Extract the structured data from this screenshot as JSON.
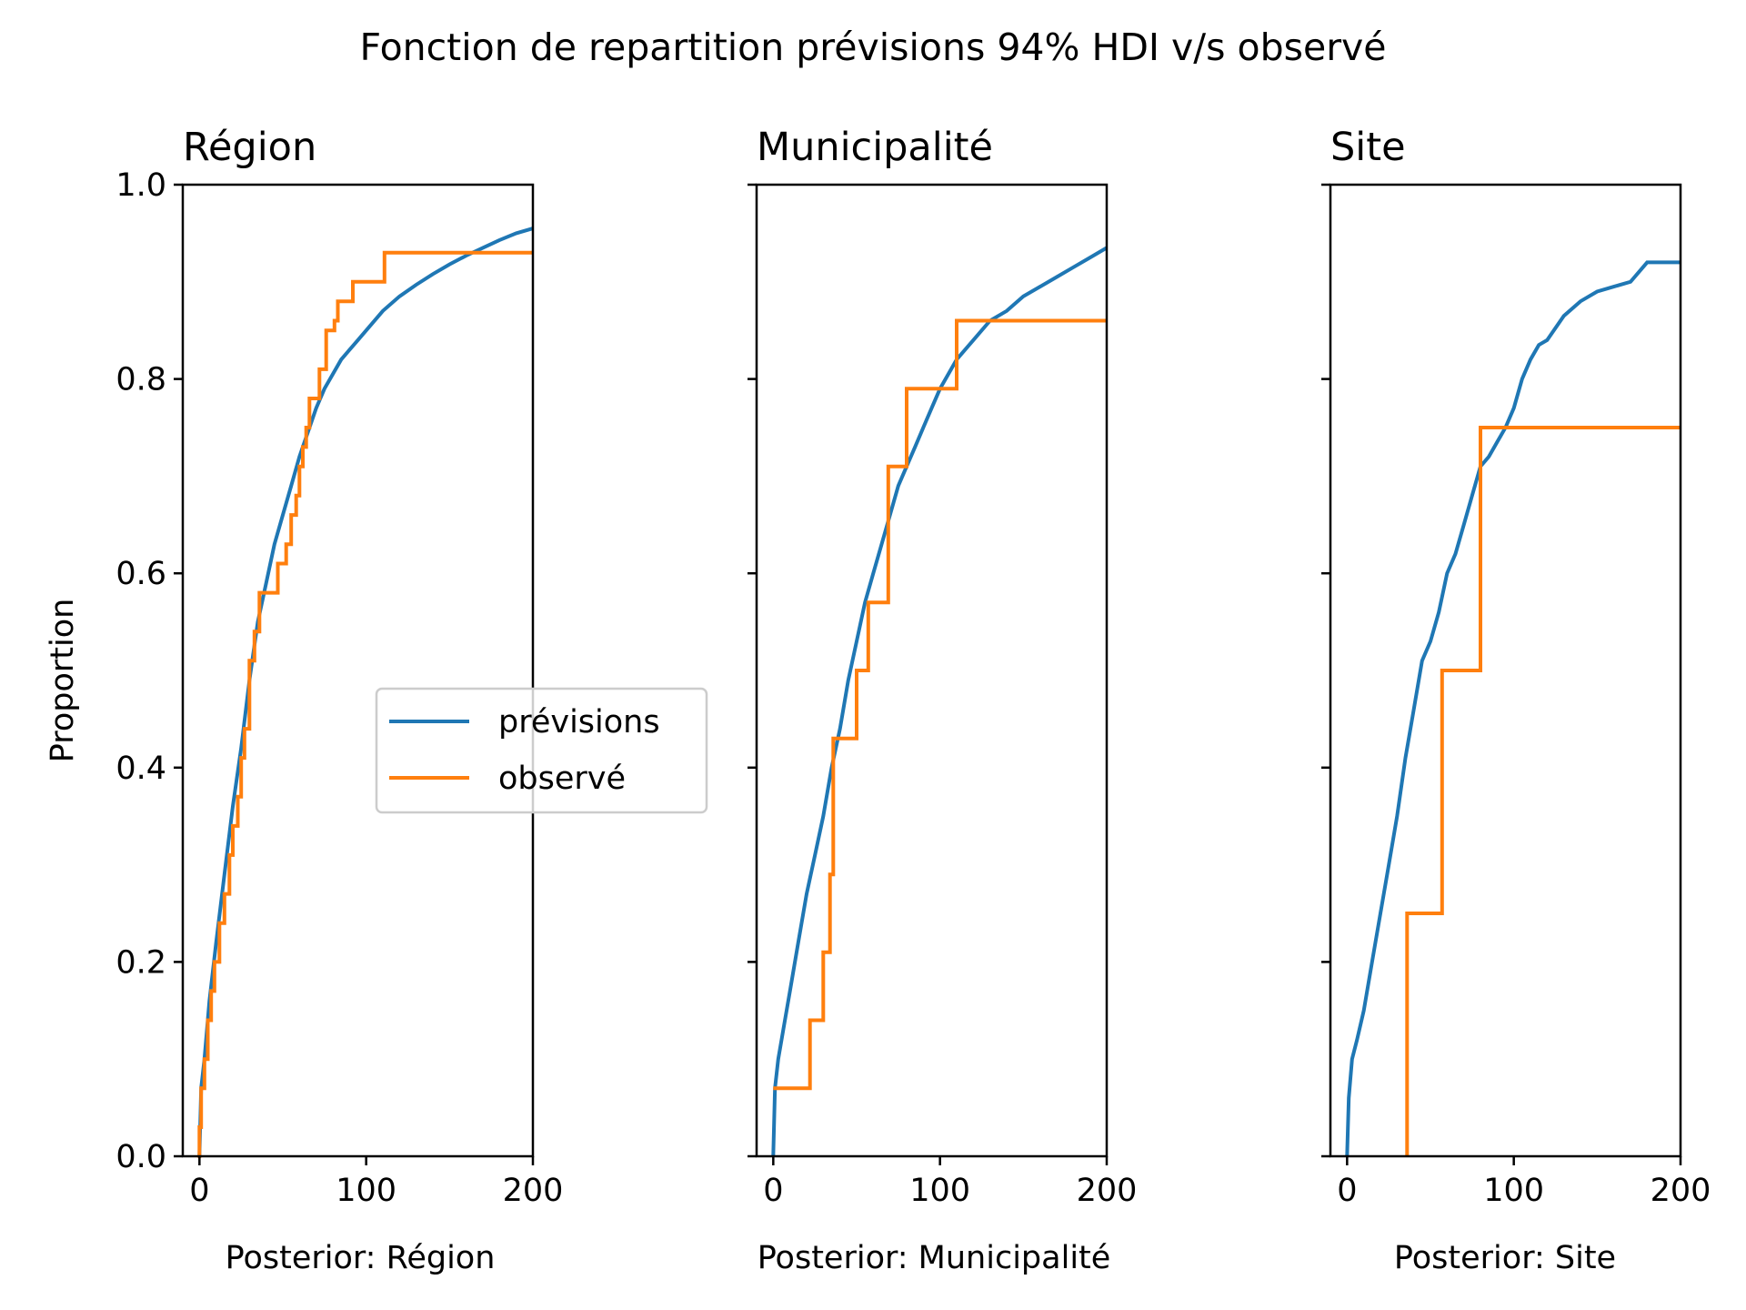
{
  "figure": {
    "title": "Fonction de repartition prévisions 94% HDI v/s observé"
  },
  "colors": {
    "previsions": "#1f77b4",
    "observe": "#ff7f0e"
  },
  "chart_data": [
    {
      "type": "line",
      "title": "Région",
      "xlabel": "Posterior: Région",
      "ylabel": "Proportion",
      "xlim": [
        -10,
        200
      ],
      "ylim": [
        0,
        1
      ],
      "xticks": [
        "0",
        "100",
        "200"
      ],
      "yticks": [
        "0.0",
        "0.2",
        "0.4",
        "0.6",
        "0.8",
        "1.0"
      ],
      "legend": {
        "position": "center-right",
        "entries": [
          "prévisions",
          "observé"
        ]
      },
      "series": [
        {
          "name": "prévisions",
          "step": false,
          "x": [
            0,
            1,
            3,
            6,
            10,
            15,
            20,
            25,
            30,
            35,
            40,
            45,
            50,
            55,
            60,
            65,
            70,
            75,
            80,
            85,
            90,
            95,
            100,
            110,
            120,
            130,
            140,
            150,
            160,
            170,
            180,
            190,
            200
          ],
          "y": [
            0,
            0.07,
            0.1,
            0.16,
            0.22,
            0.29,
            0.36,
            0.42,
            0.49,
            0.55,
            0.59,
            0.63,
            0.66,
            0.69,
            0.72,
            0.745,
            0.77,
            0.79,
            0.805,
            0.82,
            0.83,
            0.84,
            0.85,
            0.87,
            0.885,
            0.897,
            0.908,
            0.918,
            0.927,
            0.935,
            0.943,
            0.95,
            0.955
          ]
        },
        {
          "name": "observé",
          "step": true,
          "x": [
            -1,
            0,
            1,
            3,
            5,
            7,
            9,
            12,
            15,
            18,
            20,
            23,
            25,
            27,
            30,
            33,
            36,
            40,
            47,
            52,
            55,
            58,
            60,
            62,
            64,
            66,
            68,
            72,
            76,
            78,
            81,
            83,
            87,
            92,
            98,
            111,
            200
          ],
          "y": [
            0,
            0.03,
            0.07,
            0.1,
            0.14,
            0.17,
            0.2,
            0.24,
            0.27,
            0.31,
            0.34,
            0.37,
            0.41,
            0.44,
            0.51,
            0.54,
            0.58,
            0.58,
            0.61,
            0.63,
            0.66,
            0.68,
            0.71,
            0.73,
            0.75,
            0.78,
            0.78,
            0.81,
            0.85,
            0.85,
            0.86,
            0.88,
            0.88,
            0.9,
            0.9,
            0.93,
            0.93
          ]
        }
      ]
    },
    {
      "type": "line",
      "title": "Municipalité",
      "xlabel": "Posterior: Municipalité",
      "ylabel": "",
      "xlim": [
        -10,
        200
      ],
      "ylim": [
        0,
        1
      ],
      "xticks": [
        "0",
        "100",
        "200"
      ],
      "yticks": [],
      "series": [
        {
          "name": "prévisions",
          "step": false,
          "x": [
            0,
            1,
            3,
            6,
            10,
            15,
            20,
            25,
            30,
            35,
            40,
            45,
            50,
            55,
            60,
            65,
            70,
            75,
            80,
            85,
            90,
            95,
            100,
            110,
            120,
            130,
            140,
            150,
            160,
            170,
            180,
            190,
            200
          ],
          "y": [
            0,
            0.07,
            0.1,
            0.13,
            0.17,
            0.22,
            0.27,
            0.31,
            0.35,
            0.4,
            0.44,
            0.49,
            0.53,
            0.57,
            0.6,
            0.63,
            0.66,
            0.69,
            0.71,
            0.73,
            0.75,
            0.77,
            0.79,
            0.82,
            0.84,
            0.86,
            0.87,
            0.885,
            0.895,
            0.905,
            0.915,
            0.925,
            0.935
          ]
        },
        {
          "name": "observé",
          "step": true,
          "x": [
            0,
            22,
            30,
            34,
            36,
            50,
            57,
            69,
            80,
            110,
            200
          ],
          "y": [
            0.07,
            0.14,
            0.21,
            0.29,
            0.43,
            0.5,
            0.57,
            0.71,
            0.79,
            0.86,
            0.86
          ]
        }
      ]
    },
    {
      "type": "line",
      "title": "Site",
      "xlabel": "Posterior: Site",
      "ylabel": "",
      "xlim": [
        -10,
        200
      ],
      "ylim": [
        0,
        1
      ],
      "xticks": [
        "0",
        "100",
        "200"
      ],
      "yticks": [],
      "series": [
        {
          "name": "prévisions",
          "step": false,
          "x": [
            0,
            1,
            3,
            6,
            10,
            15,
            20,
            25,
            30,
            35,
            40,
            45,
            50,
            55,
            60,
            65,
            70,
            75,
            80,
            85,
            90,
            95,
            100,
            105,
            110,
            115,
            120,
            130,
            140,
            150,
            160,
            170,
            180,
            190,
            200
          ],
          "y": [
            0,
            0.06,
            0.1,
            0.12,
            0.15,
            0.2,
            0.25,
            0.3,
            0.35,
            0.41,
            0.46,
            0.51,
            0.53,
            0.56,
            0.6,
            0.62,
            0.65,
            0.68,
            0.71,
            0.72,
            0.735,
            0.75,
            0.77,
            0.8,
            0.82,
            0.835,
            0.84,
            0.865,
            0.88,
            0.89,
            0.895,
            0.9,
            0.92,
            0.92,
            0.92
          ]
        },
        {
          "name": "observé",
          "step": true,
          "x": [
            36,
            36,
            57,
            80,
            200
          ],
          "y": [
            0,
            0.25,
            0.5,
            0.75,
            0.75
          ]
        }
      ]
    }
  ]
}
